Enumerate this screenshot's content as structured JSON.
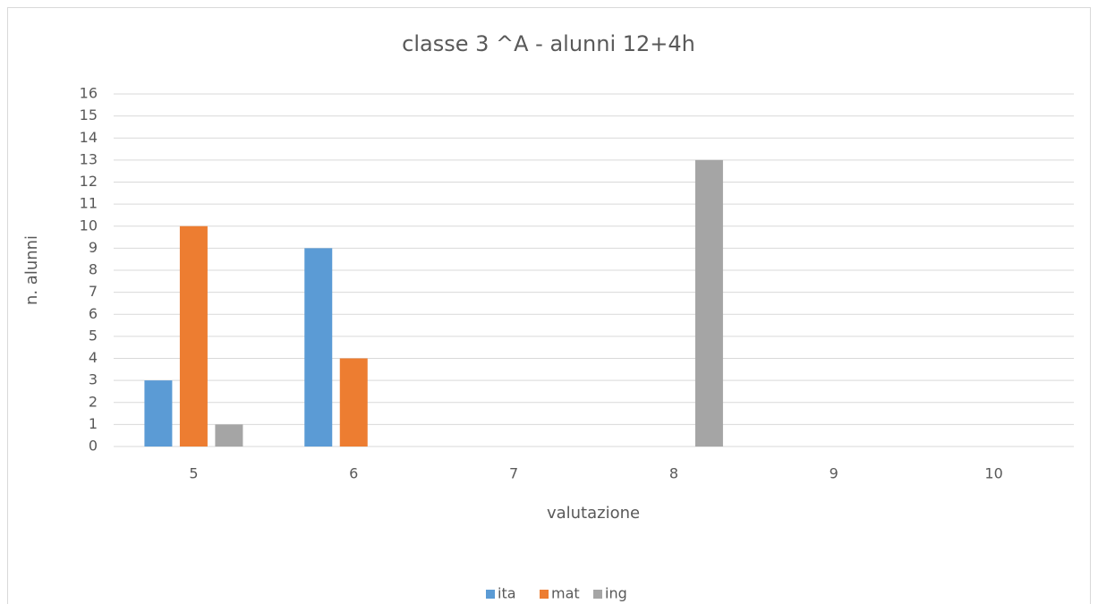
{
  "chart_data": {
    "type": "bar",
    "title": "classe 3 ^A - alunni 12+4h",
    "x_label": "valutazione",
    "y_label": "n. alunni",
    "categories": [
      "5",
      "6",
      "7",
      "8",
      "9",
      "10"
    ],
    "series": [
      {
        "name": "ita",
        "color": "#5b9bd5",
        "values": [
          3,
          9,
          0,
          0,
          0,
          0
        ]
      },
      {
        "name": "mat",
        "color": "#ed7d31",
        "values": [
          10,
          4,
          0,
          0,
          0,
          0
        ]
      },
      {
        "name": "ing",
        "color": "#a5a5a5",
        "values": [
          1,
          0,
          0,
          13,
          0,
          0
        ]
      }
    ],
    "ylim": [
      0,
      16
    ],
    "yticks": [
      0,
      1,
      2,
      3,
      4,
      5,
      6,
      7,
      8,
      9,
      10,
      11,
      12,
      13,
      14,
      15,
      16
    ],
    "grid": true,
    "legend": "bottom"
  }
}
